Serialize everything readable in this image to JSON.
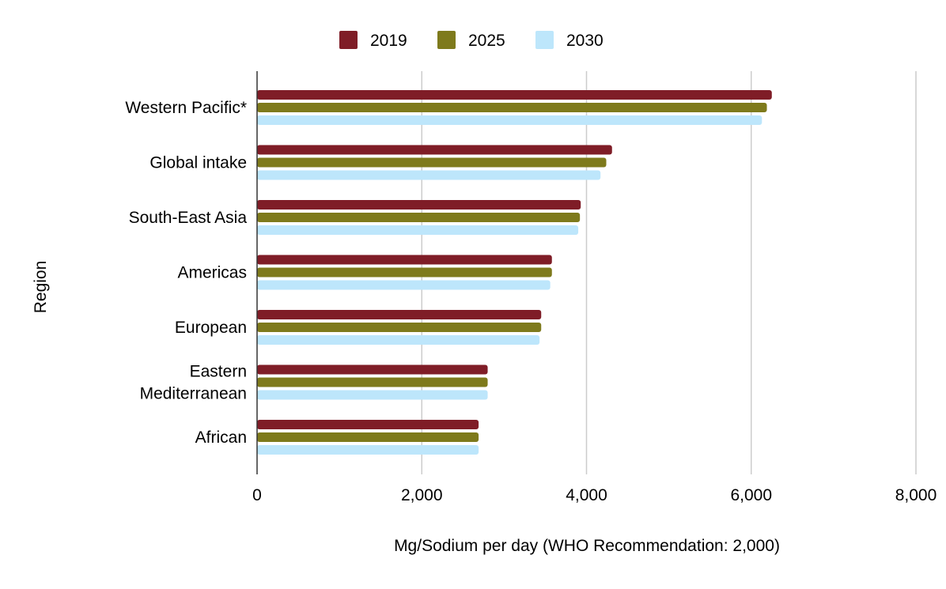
{
  "chart_data": {
    "type": "bar",
    "orientation": "horizontal",
    "categories": [
      "Western Pacific*",
      "Global intake",
      "South-East Asia",
      "Americas",
      "European",
      "Eastern Mediterranean",
      "African"
    ],
    "category_lines": [
      [
        "Western Pacific*"
      ],
      [
        "Global intake"
      ],
      [
        "South-East Asia"
      ],
      [
        "Americas"
      ],
      [
        "European"
      ],
      [
        "Eastern",
        "Mediterranean"
      ],
      [
        "African"
      ]
    ],
    "series": [
      {
        "name": "2019",
        "color": "#7f1d27",
        "values": [
          6250,
          4310,
          3930,
          3580,
          3450,
          2800,
          2690
        ]
      },
      {
        "name": "2025",
        "color": "#7e7a1c",
        "values": [
          6190,
          4240,
          3920,
          3580,
          3450,
          2800,
          2690
        ]
      },
      {
        "name": "2030",
        "color": "#bde6fb",
        "values": [
          6130,
          4170,
          3900,
          3560,
          3430,
          2800,
          2690
        ]
      }
    ],
    "xlabel": "Mg/Sodium per day (WHO Recommendation: 2,000)",
    "ylabel": "Region",
    "xlim": [
      0,
      8000
    ],
    "xticks": [
      0,
      2000,
      4000,
      6000,
      8000
    ],
    "xtick_labels": [
      "0",
      "2,000",
      "4,000",
      "6,000",
      "8,000"
    ],
    "grid": true,
    "legend_position": "top-center",
    "gridline_color": "#cccccc",
    "axis_color": "#333333"
  }
}
